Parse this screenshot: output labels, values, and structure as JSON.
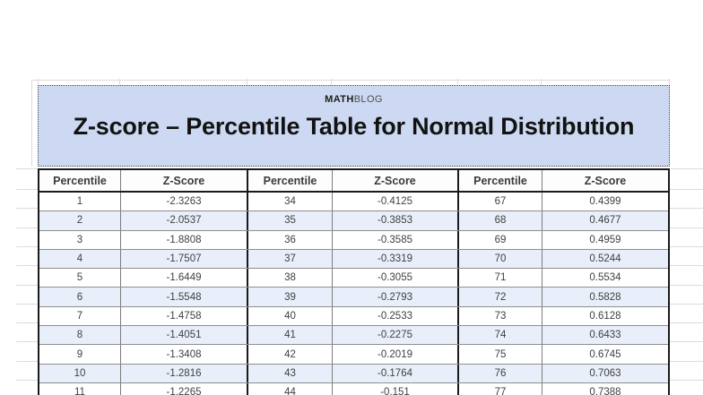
{
  "header": {
    "brand_bold": "MATH",
    "brand_light": "BLOG",
    "title": "Z-score – Percentile Table for Normal Distribution"
  },
  "table": {
    "header_labels": [
      "Percentile",
      "Z-Score",
      "Percentile",
      "Z-Score",
      "Percentile",
      "Z-Score"
    ],
    "rows": [
      [
        "1",
        "-2.3263",
        "34",
        "-0.4125",
        "67",
        "0.4399"
      ],
      [
        "2",
        "-2.0537",
        "35",
        "-0.3853",
        "68",
        "0.4677"
      ],
      [
        "3",
        "-1.8808",
        "36",
        "-0.3585",
        "69",
        "0.4959"
      ],
      [
        "4",
        "-1.7507",
        "37",
        "-0.3319",
        "70",
        "0.5244"
      ],
      [
        "5",
        "-1.6449",
        "38",
        "-0.3055",
        "71",
        "0.5534"
      ],
      [
        "6",
        "-1.5548",
        "39",
        "-0.2793",
        "72",
        "0.5828"
      ],
      [
        "7",
        "-1.4758",
        "40",
        "-0.2533",
        "73",
        "0.6128"
      ],
      [
        "8",
        "-1.4051",
        "41",
        "-0.2275",
        "74",
        "0.6433"
      ],
      [
        "9",
        "-1.3408",
        "42",
        "-0.2019",
        "75",
        "0.6745"
      ],
      [
        "10",
        "-1.2816",
        "43",
        "-0.1764",
        "76",
        "0.7063"
      ],
      [
        "11",
        "-1.2265",
        "44",
        "-0.151",
        "77",
        "0.7388"
      ]
    ]
  },
  "colors": {
    "banner_bg": "#cdd9f2",
    "row_alt_bg": "#e9effa",
    "table_border": "#1a1a1a",
    "cell_text": "#404040"
  }
}
